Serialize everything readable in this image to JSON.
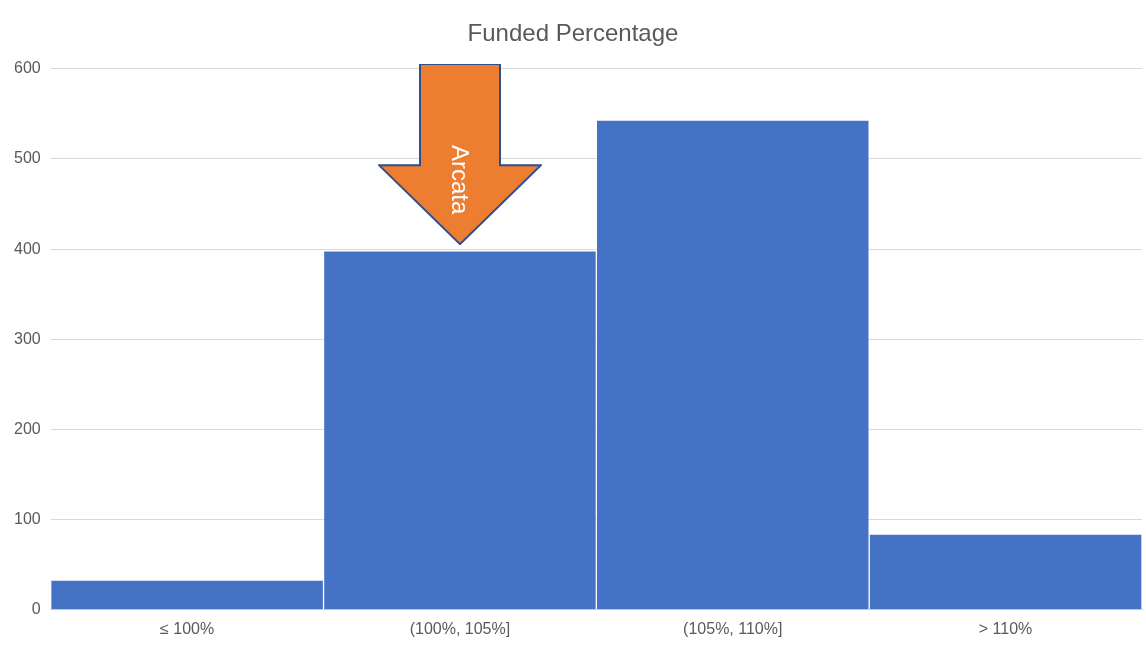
{
  "chart_data": {
    "type": "bar",
    "title": "Funded Percentage",
    "categories": [
      "≤ 100%",
      "(100%, 105%]",
      "(105%, 110%]",
      "> 110%"
    ],
    "values": [
      33,
      398,
      543,
      84
    ],
    "color": "#4472c4",
    "ylim": [
      0,
      600
    ],
    "yticks": [
      0,
      100,
      200,
      300,
      400,
      500,
      600
    ],
    "grid": "y",
    "legend": false,
    "annotations": [
      {
        "text": "Arcata",
        "x": "(100%, 105%]",
        "y": 398
      }
    ]
  }
}
